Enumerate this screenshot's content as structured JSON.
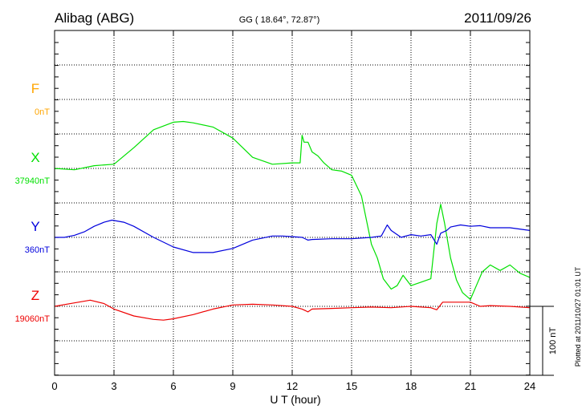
{
  "header": {
    "station": "Alibag (ABG)",
    "coords": "GG ( 18.64°,  72.87°)",
    "date": "2011/09/26"
  },
  "footer": {
    "plotted": "Plotted at 2011/10/27 01:01 UT",
    "scale_label": "100 nT"
  },
  "colors": {
    "F": "#ffa500",
    "X": "#00e000",
    "Y": "#0000dd",
    "Z": "#ee0000",
    "axis": "#000000",
    "grid": "#000000"
  },
  "chart_data": {
    "type": "line",
    "title": "",
    "xlabel": "U T (hour)",
    "xlim": [
      0,
      24
    ],
    "xticks": [
      0,
      3,
      6,
      9,
      12,
      15,
      18,
      21,
      24
    ],
    "scale_bar_nT": 100,
    "grid": true,
    "series": [
      {
        "name": "F",
        "baseline_label": "0nT",
        "baseline_nT": 0,
        "x": [],
        "y": []
      },
      {
        "name": "X",
        "baseline_label": "37940nT",
        "baseline_nT": 37940,
        "x": [
          0,
          1,
          2,
          3,
          4,
          5,
          6,
          6.5,
          7,
          8,
          9,
          10,
          11,
          12,
          12.4,
          12.5,
          12.6,
          12.8,
          13,
          13.3,
          13.6,
          14,
          14.5,
          15,
          15.5,
          16,
          16.3,
          16.6,
          17,
          17.3,
          17.6,
          18,
          18.5,
          19,
          19.3,
          19.5,
          19.7,
          20,
          20.3,
          20.6,
          21,
          21.3,
          21.6,
          22,
          22.5,
          23,
          23.5,
          24
        ],
        "y": [
          37940,
          37938,
          37944,
          37946,
          37970,
          37996,
          38007,
          38008,
          38006,
          38000,
          37984,
          37956,
          37946,
          37948,
          37948,
          37988,
          37978,
          37978,
          37964,
          37958,
          37948,
          37938,
          37936,
          37930,
          37900,
          37830,
          37810,
          37780,
          37765,
          37770,
          37785,
          37770,
          37775,
          37780,
          37860,
          37888,
          37860,
          37810,
          37778,
          37760,
          37750,
          37770,
          37790,
          37800,
          37792,
          37800,
          37788,
          37782
        ]
      },
      {
        "name": "Y",
        "baseline_label": "360nT",
        "baseline_nT": 360,
        "x": [
          0,
          0.5,
          1,
          1.5,
          2,
          2.5,
          2.9,
          3.5,
          4,
          5,
          6,
          7,
          8,
          9,
          10,
          11,
          11.5,
          12,
          12.5,
          12.8,
          13,
          14,
          15,
          16,
          16.5,
          16.8,
          17,
          17.5,
          18,
          18.5,
          19,
          19.3,
          19.5,
          19.8,
          20,
          20.5,
          21,
          21.5,
          22,
          23,
          24
        ],
        "y": [
          360,
          360,
          363,
          368,
          376,
          382,
          385,
          382,
          376,
          360,
          346,
          338,
          338,
          344,
          356,
          362,
          362,
          361,
          360,
          356,
          357,
          358,
          358,
          360,
          362,
          378,
          370,
          360,
          364,
          362,
          364,
          350,
          366,
          370,
          375,
          378,
          376,
          377,
          374,
          374,
          370
        ]
      },
      {
        "name": "Z",
        "baseline_label": "19060nT",
        "baseline_nT": 19060,
        "x": [
          0,
          1,
          1.8,
          2.5,
          3,
          4,
          5,
          5.5,
          6,
          7,
          8,
          9,
          10,
          11,
          12,
          12.5,
          12.8,
          13,
          14,
          15,
          16,
          17,
          18,
          19,
          19.3,
          19.6,
          20,
          20.5,
          21,
          21.5,
          22,
          23,
          24
        ],
        "y": [
          19060,
          19065,
          19069,
          19064,
          19056,
          19046,
          19041,
          19040,
          19042,
          19048,
          19056,
          19062,
          19063,
          19062,
          19060,
          19056,
          19052,
          19056,
          19057,
          19058,
          19059,
          19058,
          19060,
          19058,
          19055,
          19066,
          19066,
          19066,
          19066,
          19060,
          19061,
          19060,
          19058
        ]
      }
    ]
  }
}
